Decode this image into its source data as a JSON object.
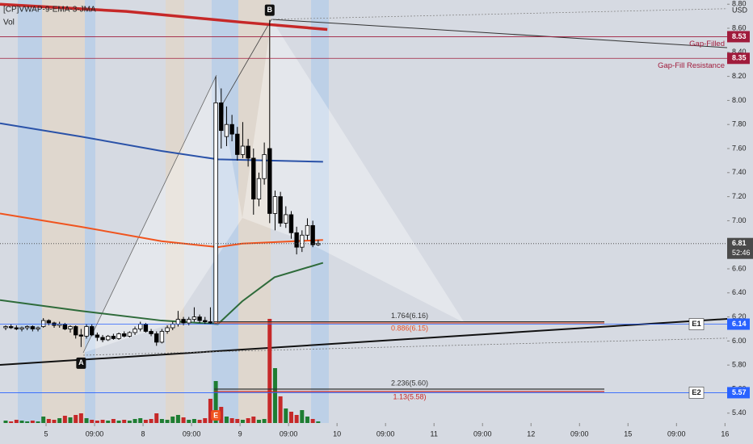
{
  "chart_data": {
    "type": "candlestick",
    "title": "[CP]VWAP-9-EMA-3-JMA",
    "subtitle": "Vol",
    "y_unit": "USD",
    "ylim": [
      5.318,
      8.835
    ],
    "yticks": [
      {
        "value": 5.4,
        "label": "5.40"
      },
      {
        "value": 5.6,
        "label": "5.60"
      },
      {
        "value": 5.8,
        "label": "5.80"
      },
      {
        "value": 6.0,
        "label": "6.00"
      },
      {
        "value": 6.2,
        "label": "6.20"
      },
      {
        "value": 6.4,
        "label": "6.40"
      },
      {
        "value": 6.6,
        "label": "6.60"
      },
      {
        "value": 6.8,
        "label": "6.80"
      },
      {
        "value": 7.0,
        "label": "7.00"
      },
      {
        "value": 7.2,
        "label": "7.20"
      },
      {
        "value": 7.4,
        "label": "7.40"
      },
      {
        "value": 7.6,
        "label": "7.60"
      },
      {
        "value": 7.8,
        "label": "7.80"
      },
      {
        "value": 8.0,
        "label": "8.00"
      },
      {
        "value": 8.2,
        "label": "8.20"
      },
      {
        "value": 8.4,
        "label": "8.40"
      },
      {
        "value": 8.6,
        "label": "8.60"
      },
      {
        "value": 8.8,
        "label": "8.80"
      }
    ],
    "xlim": [
      -1.05,
      133.9
    ],
    "xticks": [
      {
        "value": 7.5,
        "label": "5"
      },
      {
        "value": 16.5,
        "label": "09:00"
      },
      {
        "value": 25.5,
        "label": "8"
      },
      {
        "value": 34.5,
        "label": "09:00"
      },
      {
        "value": 43.5,
        "label": "9"
      },
      {
        "value": 52.5,
        "label": "09:00"
      },
      {
        "value": 61.5,
        "label": "10"
      },
      {
        "value": 70.5,
        "label": "09:00"
      },
      {
        "value": 79.5,
        "label": "11"
      },
      {
        "value": 88.5,
        "label": "09:00"
      },
      {
        "value": 97.5,
        "label": "12"
      },
      {
        "value": 106.5,
        "label": "09:00"
      },
      {
        "value": 115.5,
        "label": "15"
      },
      {
        "value": 124.5,
        "label": "09:00"
      },
      {
        "value": 133.5,
        "label": "16"
      }
    ],
    "grid": false,
    "up_color": "#ffffff",
    "down_color": "#000000",
    "vol_up_color": "#1e7d32",
    "vol_down_color": "#c62828",
    "x": [
      0,
      1,
      2,
      3,
      4,
      5,
      6,
      7,
      8,
      9,
      10,
      11,
      12,
      13,
      14,
      15,
      16,
      17,
      18,
      19,
      20,
      21,
      22,
      23,
      24,
      25,
      26,
      27,
      28,
      29,
      30,
      31,
      32,
      33,
      34,
      35,
      36,
      37,
      38,
      39,
      40,
      41,
      42,
      43,
      44,
      45,
      46,
      47,
      48,
      49,
      50,
      51,
      52,
      53,
      54,
      55,
      56,
      57,
      58
    ],
    "open": [
      6.11,
      6.12,
      6.11,
      6.1,
      6.11,
      6.12,
      6.1,
      6.12,
      6.17,
      6.15,
      6.13,
      6.14,
      6.1,
      6.12,
      6.05,
      6.04,
      6.12,
      6.05,
      6.03,
      6.01,
      6.04,
      6.02,
      6.06,
      6.04,
      6.07,
      6.1,
      6.14,
      6.08,
      6.06,
      5.99,
      6.08,
      6.11,
      6.14,
      6.18,
      6.15,
      6.18,
      6.2,
      6.17,
      6.16,
      6.15,
      7.98,
      7.7,
      7.8,
      7.72,
      7.55,
      7.62,
      7.52,
      7.18,
      7.35,
      7.6,
      7.06,
      7.2,
      6.98,
      7.05,
      6.9,
      6.78,
      6.88,
      6.96,
      6.8
    ],
    "high": [
      6.13,
      6.14,
      6.13,
      6.12,
      6.13,
      6.13,
      6.12,
      6.19,
      6.18,
      6.16,
      6.16,
      6.15,
      6.13,
      6.13,
      6.1,
      6.14,
      6.14,
      6.07,
      6.05,
      6.05,
      6.06,
      6.07,
      6.08,
      6.08,
      6.12,
      6.16,
      6.15,
      6.1,
      6.08,
      6.1,
      6.13,
      6.16,
      6.25,
      6.2,
      6.2,
      6.28,
      6.22,
      6.2,
      6.28,
      8.2,
      8.1,
      7.95,
      7.88,
      7.78,
      7.82,
      7.68,
      7.6,
      7.4,
      7.65,
      8.67,
      7.25,
      7.24,
      7.12,
      7.08,
      6.95,
      6.92,
      7.02,
      7.0,
      6.84
    ],
    "low": [
      6.09,
      6.1,
      6.09,
      6.08,
      6.09,
      6.08,
      6.08,
      6.11,
      6.13,
      6.11,
      6.11,
      6.09,
      6.07,
      6.02,
      5.95,
      6.02,
      6.04,
      6.0,
      5.99,
      6.0,
      6.01,
      6.01,
      6.03,
      6.03,
      6.05,
      6.08,
      6.07,
      6.04,
      5.96,
      5.98,
      6.06,
      6.09,
      6.12,
      6.13,
      6.13,
      6.16,
      6.15,
      6.14,
      6.14,
      6.14,
      7.6,
      7.62,
      7.66,
      7.5,
      7.52,
      7.45,
      7.05,
      7.12,
      7.3,
      6.98,
      6.92,
      6.95,
      6.94,
      6.85,
      6.72,
      6.74,
      6.84,
      6.78,
      6.79
    ],
    "close": [
      6.12,
      6.11,
      6.1,
      6.11,
      6.12,
      6.1,
      6.11,
      6.17,
      6.15,
      6.13,
      6.14,
      6.1,
      6.12,
      6.05,
      6.04,
      6.12,
      6.05,
      6.03,
      6.01,
      6.04,
      6.02,
      6.06,
      6.04,
      6.07,
      6.1,
      6.14,
      6.08,
      6.06,
      5.99,
      6.08,
      6.11,
      6.14,
      6.18,
      6.15,
      6.18,
      6.2,
      6.17,
      6.16,
      6.15,
      7.98,
      7.75,
      7.8,
      7.72,
      7.55,
      7.62,
      7.52,
      7.18,
      7.35,
      7.55,
      7.06,
      7.2,
      6.98,
      7.05,
      6.9,
      6.78,
      6.88,
      6.96,
      6.8,
      6.81
    ],
    "volume_lim": [
      0,
      130
    ],
    "volume": [
      3,
      2,
      4,
      3,
      2,
      3,
      2,
      8,
      5,
      4,
      6,
      9,
      7,
      10,
      12,
      6,
      4,
      3,
      4,
      3,
      5,
      3,
      4,
      3,
      5,
      6,
      4,
      5,
      12,
      5,
      4,
      8,
      10,
      7,
      4,
      5,
      4,
      6,
      30,
      52,
      20,
      8,
      6,
      5,
      4,
      6,
      8,
      4,
      5,
      129,
      68,
      33,
      18,
      14,
      10,
      16,
      8,
      5,
      2
    ],
    "lines": [
      {
        "color": "#c62828",
        "x": [
          -1.05,
          22.4,
          43.9,
          59.7
        ],
        "values": [
          8.8,
          8.74,
          8.65,
          8.59
        ]
      },
      {
        "color": "#2a52a8",
        "x": [
          -1.05,
          13.9,
          28.9,
          39.4,
          58.9
        ],
        "values": [
          7.81,
          7.7,
          7.58,
          7.51,
          7.49
        ]
      },
      {
        "color": "#f0541e",
        "x": [
          -1.05,
          13.9,
          28.9,
          39.4,
          43.9,
          58.9
        ],
        "values": [
          7.06,
          6.95,
          6.83,
          6.78,
          6.81,
          6.84
        ]
      },
      {
        "color": "#2e6b3a",
        "x": [
          -1.05,
          13.9,
          28.9,
          39.4,
          43.9,
          49.9,
          58.9
        ],
        "values": [
          6.34,
          6.25,
          6.17,
          6.14,
          6.33,
          6.53,
          6.65
        ]
      }
    ],
    "price_lines": [
      {
        "value": 8.53,
        "label": "Gap-Filled",
        "color": "#a01c3c"
      },
      {
        "value": 8.35,
        "label": "Gap-Fill Resistance",
        "color": "#a01c3c"
      },
      {
        "value": 6.14,
        "color": "#2962ff"
      },
      {
        "value": 5.57,
        "color": "#2962ff"
      }
    ],
    "last_price": {
      "value": 6.81,
      "color": "#4a4a4a",
      "countdown": "52:46"
    },
    "fib_levels": [
      {
        "text": "1.764(6.16)",
        "price": 6.16,
        "color": "#333333"
      },
      {
        "text": "0.886(6.15)",
        "price": 6.15,
        "color": "#e2502a"
      },
      {
        "text": "2.236(5.60)",
        "price": 5.6,
        "color": "#333333"
      },
      {
        "text": "1.13(5.58)",
        "price": 5.58,
        "color": "#c62828"
      }
    ],
    "pattern_points": [
      {
        "label": "A",
        "x": 14,
        "price": 5.95
      },
      {
        "label": "B",
        "x": 49,
        "price": 8.67
      }
    ],
    "targets": [
      {
        "label": "E1",
        "price": 6.14
      },
      {
        "label": "E2",
        "price": 5.57
      }
    ],
    "earnings_marker": "E"
  }
}
